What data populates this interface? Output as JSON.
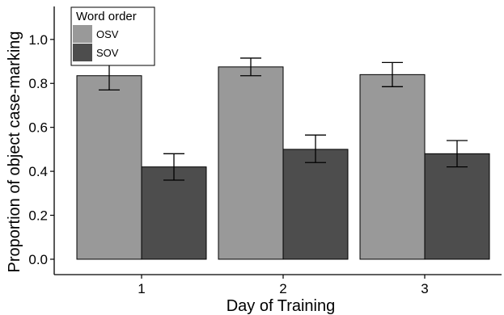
{
  "chart_data": {
    "type": "bar",
    "xlabel": "Day of Training",
    "ylabel": "Proportion of object case-marking",
    "categories": [
      "1",
      "2",
      "3"
    ],
    "ylim": [
      -0.07,
      1.15
    ],
    "yticks": [
      "0.0",
      "0.2",
      "0.4",
      "0.6",
      "0.8",
      "1.0"
    ],
    "grid": false,
    "legend": {
      "title": "Word order",
      "position": "top-left",
      "entries": [
        {
          "label": "OSV",
          "color": "#999999"
        },
        {
          "label": "SOV",
          "color": "#4d4d4d"
        }
      ]
    },
    "series": [
      {
        "name": "OSV",
        "color": "#999999",
        "values": [
          0.835,
          0.875,
          0.84
        ],
        "error_low": [
          0.77,
          0.835,
          0.785
        ],
        "error_high": [
          0.9,
          0.915,
          0.895
        ]
      },
      {
        "name": "SOV",
        "color": "#4d4d4d",
        "values": [
          0.42,
          0.5,
          0.48
        ],
        "error_low": [
          0.36,
          0.44,
          0.42
        ],
        "error_high": [
          0.48,
          0.565,
          0.54
        ]
      }
    ]
  }
}
